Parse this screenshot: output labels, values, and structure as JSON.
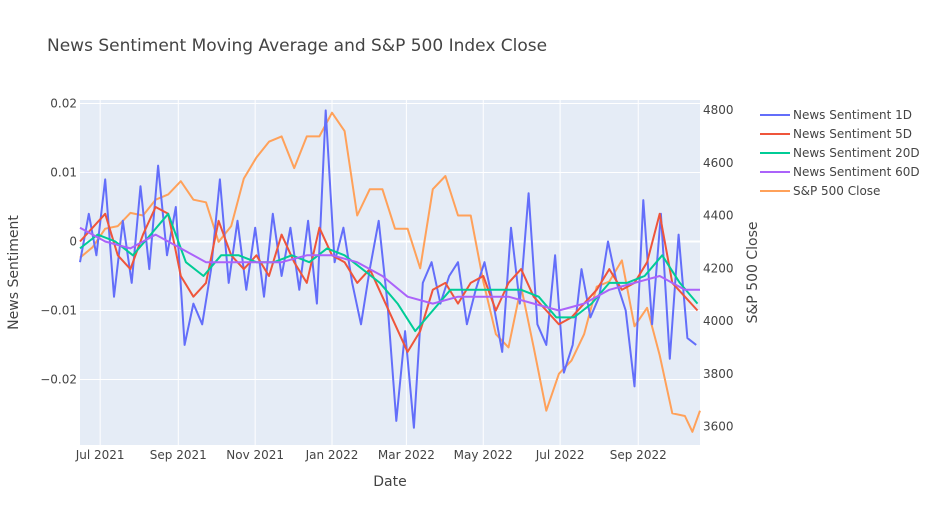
{
  "chart_data": {
    "type": "line",
    "title": "News Sentiment Moving Average and S&P 500 Index Close",
    "xlabel": "Date",
    "ylabel": "News Sentiment",
    "y2label": "S&P 500 Close",
    "x_range": [
      "2021-06-15",
      "2022-10-20"
    ],
    "x_ticks": [
      {
        "date": "2021-07-01",
        "label": "Jul 2021"
      },
      {
        "date": "2021-09-01",
        "label": "Sep 2021"
      },
      {
        "date": "2021-11-01",
        "label": "Nov 2021"
      },
      {
        "date": "2022-01-01",
        "label": "Jan 2022"
      },
      {
        "date": "2022-03-01",
        "label": "Mar 2022"
      },
      {
        "date": "2022-05-01",
        "label": "May 2022"
      },
      {
        "date": "2022-07-01",
        "label": "Jul 2022"
      },
      {
        "date": "2022-09-01",
        "label": "Sep 2022"
      }
    ],
    "ylim": [
      -0.0295,
      0.0205
    ],
    "y_ticks": [
      {
        "value": 0.02,
        "label": "0.02"
      },
      {
        "value": 0.01,
        "label": "0.01"
      },
      {
        "value": 0,
        "label": "0"
      },
      {
        "value": -0.01,
        "label": "−0.01"
      },
      {
        "value": -0.02,
        "label": "−0.02"
      }
    ],
    "y2lim": [
      3530,
      4838
    ],
    "y2_ticks": [
      {
        "value": 3600,
        "label": "3600"
      },
      {
        "value": 3800,
        "label": "3800"
      },
      {
        "value": 4000,
        "label": "4000"
      },
      {
        "value": 4200,
        "label": "4200"
      },
      {
        "value": 4400,
        "label": "4400"
      },
      {
        "value": 4600,
        "label": "4600"
      },
      {
        "value": 4800,
        "label": "4800"
      }
    ],
    "grid": true,
    "legend_position": "right",
    "series": [
      {
        "name": "News Sentiment 1D",
        "axis": "y",
        "color": "#636efa",
        "points": [
          [
            "2021-06-15",
            -0.003
          ],
          [
            "2021-06-22",
            0.004
          ],
          [
            "2021-06-28",
            -0.002
          ],
          [
            "2021-07-05",
            0.009
          ],
          [
            "2021-07-12",
            -0.008
          ],
          [
            "2021-07-19",
            0.003
          ],
          [
            "2021-07-26",
            -0.006
          ],
          [
            "2021-08-02",
            0.008
          ],
          [
            "2021-08-09",
            -0.004
          ],
          [
            "2021-08-16",
            0.011
          ],
          [
            "2021-08-23",
            -0.002
          ],
          [
            "2021-08-30",
            0.005
          ],
          [
            "2021-09-06",
            -0.015
          ],
          [
            "2021-09-13",
            -0.009
          ],
          [
            "2021-09-20",
            -0.012
          ],
          [
            "2021-09-27",
            -0.004
          ],
          [
            "2021-10-04",
            0.009
          ],
          [
            "2021-10-11",
            -0.006
          ],
          [
            "2021-10-18",
            0.003
          ],
          [
            "2021-10-25",
            -0.007
          ],
          [
            "2021-11-01",
            0.002
          ],
          [
            "2021-11-08",
            -0.008
          ],
          [
            "2021-11-15",
            0.004
          ],
          [
            "2021-11-22",
            -0.005
          ],
          [
            "2021-11-29",
            0.002
          ],
          [
            "2021-12-06",
            -0.007
          ],
          [
            "2021-12-13",
            0.003
          ],
          [
            "2021-12-20",
            -0.009
          ],
          [
            "2021-12-27",
            0.019
          ],
          [
            "2022-01-03",
            -0.003
          ],
          [
            "2022-01-10",
            0.002
          ],
          [
            "2022-01-17",
            -0.006
          ],
          [
            "2022-01-24",
            -0.012
          ],
          [
            "2022-01-31",
            -0.004
          ],
          [
            "2022-02-07",
            0.003
          ],
          [
            "2022-02-14",
            -0.009
          ],
          [
            "2022-02-21",
            -0.026
          ],
          [
            "2022-02-28",
            -0.013
          ],
          [
            "2022-03-07",
            -0.027
          ],
          [
            "2022-03-14",
            -0.006
          ],
          [
            "2022-03-21",
            -0.003
          ],
          [
            "2022-03-28",
            -0.009
          ],
          [
            "2022-04-04",
            -0.005
          ],
          [
            "2022-04-11",
            -0.003
          ],
          [
            "2022-04-18",
            -0.012
          ],
          [
            "2022-04-25",
            -0.007
          ],
          [
            "2022-05-02",
            -0.003
          ],
          [
            "2022-05-09",
            -0.009
          ],
          [
            "2022-05-16",
            -0.016
          ],
          [
            "2022-05-23",
            0.002
          ],
          [
            "2022-05-30",
            -0.009
          ],
          [
            "2022-06-06",
            0.007
          ],
          [
            "2022-06-13",
            -0.012
          ],
          [
            "2022-06-20",
            -0.015
          ],
          [
            "2022-06-27",
            -0.002
          ],
          [
            "2022-07-04",
            -0.019
          ],
          [
            "2022-07-11",
            -0.015
          ],
          [
            "2022-07-18",
            -0.004
          ],
          [
            "2022-07-25",
            -0.011
          ],
          [
            "2022-08-01",
            -0.008
          ],
          [
            "2022-08-08",
            0.0
          ],
          [
            "2022-08-15",
            -0.006
          ],
          [
            "2022-08-22",
            -0.01
          ],
          [
            "2022-08-29",
            -0.021
          ],
          [
            "2022-09-05",
            0.006
          ],
          [
            "2022-09-12",
            -0.012
          ],
          [
            "2022-09-19",
            0.004
          ],
          [
            "2022-09-26",
            -0.017
          ],
          [
            "2022-10-03",
            0.001
          ],
          [
            "2022-10-10",
            -0.014
          ],
          [
            "2022-10-17",
            -0.015
          ]
        ]
      },
      {
        "name": "News Sentiment 5D",
        "axis": "y",
        "color": "#ef553b",
        "points": [
          [
            "2021-06-15",
            0.0
          ],
          [
            "2021-06-25",
            0.002
          ],
          [
            "2021-07-05",
            0.004
          ],
          [
            "2021-07-15",
            -0.002
          ],
          [
            "2021-07-25",
            -0.004
          ],
          [
            "2021-08-04",
            0.001
          ],
          [
            "2021-08-14",
            0.005
          ],
          [
            "2021-08-24",
            0.004
          ],
          [
            "2021-09-03",
            -0.005
          ],
          [
            "2021-09-13",
            -0.008
          ],
          [
            "2021-09-23",
            -0.006
          ],
          [
            "2021-10-03",
            0.003
          ],
          [
            "2021-10-13",
            -0.002
          ],
          [
            "2021-10-23",
            -0.004
          ],
          [
            "2021-11-02",
            -0.002
          ],
          [
            "2021-11-12",
            -0.005
          ],
          [
            "2021-11-22",
            0.001
          ],
          [
            "2021-12-02",
            -0.003
          ],
          [
            "2021-12-12",
            -0.006
          ],
          [
            "2021-12-22",
            0.002
          ],
          [
            "2022-01-01",
            -0.002
          ],
          [
            "2022-01-11",
            -0.003
          ],
          [
            "2022-01-21",
            -0.006
          ],
          [
            "2022-01-31",
            -0.004
          ],
          [
            "2022-02-10",
            -0.008
          ],
          [
            "2022-02-20",
            -0.012
          ],
          [
            "2022-03-02",
            -0.016
          ],
          [
            "2022-03-12",
            -0.013
          ],
          [
            "2022-03-22",
            -0.007
          ],
          [
            "2022-04-01",
            -0.006
          ],
          [
            "2022-04-11",
            -0.009
          ],
          [
            "2022-04-21",
            -0.006
          ],
          [
            "2022-05-01",
            -0.005
          ],
          [
            "2022-05-11",
            -0.01
          ],
          [
            "2022-05-21",
            -0.006
          ],
          [
            "2022-05-31",
            -0.004
          ],
          [
            "2022-06-10",
            -0.008
          ],
          [
            "2022-06-20",
            -0.01
          ],
          [
            "2022-06-30",
            -0.012
          ],
          [
            "2022-07-10",
            -0.011
          ],
          [
            "2022-07-20",
            -0.009
          ],
          [
            "2022-07-30",
            -0.007
          ],
          [
            "2022-08-09",
            -0.004
          ],
          [
            "2022-08-19",
            -0.007
          ],
          [
            "2022-08-29",
            -0.006
          ],
          [
            "2022-09-08",
            -0.003
          ],
          [
            "2022-09-18",
            0.004
          ],
          [
            "2022-09-28",
            -0.006
          ],
          [
            "2022-10-08",
            -0.008
          ],
          [
            "2022-10-18",
            -0.01
          ]
        ]
      },
      {
        "name": "News Sentiment 20D",
        "axis": "y",
        "color": "#00cc96",
        "points": [
          [
            "2021-06-15",
            -0.001
          ],
          [
            "2021-06-29",
            0.001
          ],
          [
            "2021-07-13",
            0.0
          ],
          [
            "2021-07-27",
            -0.002
          ],
          [
            "2021-08-10",
            0.001
          ],
          [
            "2021-08-24",
            0.004
          ],
          [
            "2021-09-07",
            -0.003
          ],
          [
            "2021-09-21",
            -0.005
          ],
          [
            "2021-10-05",
            -0.002
          ],
          [
            "2021-10-19",
            -0.002
          ],
          [
            "2021-11-02",
            -0.003
          ],
          [
            "2021-11-16",
            -0.003
          ],
          [
            "2021-11-30",
            -0.002
          ],
          [
            "2021-12-14",
            -0.003
          ],
          [
            "2021-12-28",
            -0.001
          ],
          [
            "2022-01-11",
            -0.002
          ],
          [
            "2022-01-25",
            -0.004
          ],
          [
            "2022-02-08",
            -0.006
          ],
          [
            "2022-02-22",
            -0.009
          ],
          [
            "2022-03-08",
            -0.013
          ],
          [
            "2022-03-22",
            -0.01
          ],
          [
            "2022-04-05",
            -0.007
          ],
          [
            "2022-04-19",
            -0.007
          ],
          [
            "2022-05-03",
            -0.007
          ],
          [
            "2022-05-17",
            -0.007
          ],
          [
            "2022-05-31",
            -0.007
          ],
          [
            "2022-06-14",
            -0.008
          ],
          [
            "2022-06-28",
            -0.011
          ],
          [
            "2022-07-12",
            -0.011
          ],
          [
            "2022-07-26",
            -0.009
          ],
          [
            "2022-08-09",
            -0.006
          ],
          [
            "2022-08-23",
            -0.006
          ],
          [
            "2022-09-06",
            -0.005
          ],
          [
            "2022-09-20",
            -0.002
          ],
          [
            "2022-10-04",
            -0.006
          ],
          [
            "2022-10-18",
            -0.009
          ]
        ]
      },
      {
        "name": "News Sentiment 60D",
        "axis": "y",
        "color": "#ab63fa",
        "points": [
          [
            "2021-06-15",
            0.002
          ],
          [
            "2021-07-05",
            0.0
          ],
          [
            "2021-07-25",
            -0.001
          ],
          [
            "2021-08-14",
            0.001
          ],
          [
            "2021-09-03",
            -0.001
          ],
          [
            "2021-09-23",
            -0.003
          ],
          [
            "2021-10-13",
            -0.003
          ],
          [
            "2021-11-02",
            -0.003
          ],
          [
            "2021-11-22",
            -0.003
          ],
          [
            "2021-12-12",
            -0.002
          ],
          [
            "2022-01-01",
            -0.002
          ],
          [
            "2022-01-21",
            -0.003
          ],
          [
            "2022-02-10",
            -0.005
          ],
          [
            "2022-03-02",
            -0.008
          ],
          [
            "2022-03-22",
            -0.009
          ],
          [
            "2022-04-11",
            -0.008
          ],
          [
            "2022-05-01",
            -0.008
          ],
          [
            "2022-05-21",
            -0.008
          ],
          [
            "2022-06-10",
            -0.009
          ],
          [
            "2022-06-30",
            -0.01
          ],
          [
            "2022-07-20",
            -0.009
          ],
          [
            "2022-08-09",
            -0.007
          ],
          [
            "2022-08-29",
            -0.006
          ],
          [
            "2022-09-18",
            -0.005
          ],
          [
            "2022-10-08",
            -0.007
          ],
          [
            "2022-10-20",
            -0.007
          ]
        ]
      },
      {
        "name": "S&P 500 Close",
        "axis": "y2",
        "color": "#ffa15a",
        "points": [
          [
            "2021-06-15",
            4240
          ],
          [
            "2021-06-25",
            4280
          ],
          [
            "2021-07-05",
            4350
          ],
          [
            "2021-07-15",
            4360
          ],
          [
            "2021-07-25",
            4410
          ],
          [
            "2021-08-04",
            4400
          ],
          [
            "2021-08-14",
            4460
          ],
          [
            "2021-08-24",
            4480
          ],
          [
            "2021-09-03",
            4530
          ],
          [
            "2021-09-13",
            4460
          ],
          [
            "2021-09-23",
            4450
          ],
          [
            "2021-10-03",
            4300
          ],
          [
            "2021-10-13",
            4360
          ],
          [
            "2021-10-23",
            4540
          ],
          [
            "2021-11-02",
            4620
          ],
          [
            "2021-11-12",
            4680
          ],
          [
            "2021-11-22",
            4700
          ],
          [
            "2021-12-02",
            4580
          ],
          [
            "2021-12-12",
            4700
          ],
          [
            "2021-12-22",
            4700
          ],
          [
            "2022-01-01",
            4790
          ],
          [
            "2022-01-11",
            4720
          ],
          [
            "2022-01-21",
            4400
          ],
          [
            "2022-01-31",
            4500
          ],
          [
            "2022-02-10",
            4500
          ],
          [
            "2022-02-20",
            4350
          ],
          [
            "2022-03-02",
            4350
          ],
          [
            "2022-03-12",
            4200
          ],
          [
            "2022-03-22",
            4500
          ],
          [
            "2022-04-01",
            4550
          ],
          [
            "2022-04-11",
            4400
          ],
          [
            "2022-04-21",
            4400
          ],
          [
            "2022-05-01",
            4150
          ],
          [
            "2022-05-11",
            3950
          ],
          [
            "2022-05-21",
            3900
          ],
          [
            "2022-05-31",
            4130
          ],
          [
            "2022-06-10",
            3900
          ],
          [
            "2022-06-20",
            3660
          ],
          [
            "2022-06-30",
            3800
          ],
          [
            "2022-07-10",
            3850
          ],
          [
            "2022-07-20",
            3950
          ],
          [
            "2022-07-30",
            4130
          ],
          [
            "2022-08-09",
            4150
          ],
          [
            "2022-08-19",
            4230
          ],
          [
            "2022-08-29",
            3980
          ],
          [
            "2022-09-08",
            4050
          ],
          [
            "2022-09-18",
            3870
          ],
          [
            "2022-09-28",
            3650
          ],
          [
            "2022-10-08",
            3640
          ],
          [
            "2022-10-14",
            3580
          ],
          [
            "2022-10-20",
            3660
          ]
        ]
      }
    ]
  }
}
